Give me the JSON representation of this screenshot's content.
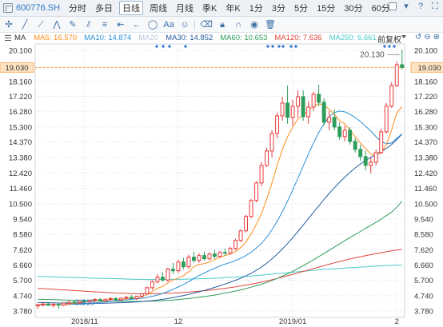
{
  "topbar": {
    "code": "600776.SH",
    "periods": [
      "分时",
      "多日",
      "日线",
      "周线",
      "月线",
      "季K",
      "年K",
      "1分",
      "3分",
      "5分",
      "15分",
      "30分",
      "60分"
    ],
    "active_period": "日线"
  },
  "legend": {
    "ma_title": "MA",
    "items": [
      {
        "label": "MA5: 16.570",
        "color": "#ff8c1a"
      },
      {
        "label": "MA10: 14.874",
        "color": "#2b8fd6"
      },
      {
        "label": "MA20",
        "color": "#b6c6dd"
      },
      {
        "label": "MA30: 14.852",
        "color": "#2a5d9f"
      },
      {
        "label": "MA60: 10.653",
        "color": "#2e9c5a"
      },
      {
        "label": "MA120: 7.636",
        "color": "#e2463b"
      },
      {
        "label": "MA250: 6.661",
        "color": "#49c9c9"
      }
    ],
    "fq": "前复权"
  },
  "chart_data": {
    "type": "candlestick",
    "ylim": [
      3.78,
      20.1
    ],
    "y_ticks": [
      20.1,
      19.03,
      18.16,
      17.22,
      16.28,
      15.3,
      14.37,
      13.38,
      12.42,
      11.46,
      10.5,
      9.54,
      8.58,
      7.62,
      6.66,
      5.7,
      4.74,
      3.78
    ],
    "x_labels": [
      {
        "label": "2018/11",
        "index": 9
      },
      {
        "label": "12",
        "index": 27
      },
      {
        "label": "2019/01",
        "index": 49
      },
      {
        "label": "2",
        "index": 69
      }
    ],
    "current_price": "19.030",
    "high_annotation": {
      "label": "20.130",
      "value": 20.13,
      "index": 70
    },
    "low_annotation": {
      "label": "3.910",
      "value": 3.91,
      "index": 4
    },
    "colors": {
      "up": "#e83a3a",
      "down": "#2e9c5a"
    },
    "candles": [
      {
        "o": 4.1,
        "h": 4.25,
        "l": 3.91,
        "c": 4.18
      },
      {
        "o": 4.18,
        "h": 4.3,
        "l": 4.05,
        "c": 4.22
      },
      {
        "o": 4.22,
        "h": 4.32,
        "l": 4.1,
        "c": 4.14
      },
      {
        "o": 4.14,
        "h": 4.26,
        "l": 4.0,
        "c": 4.2
      },
      {
        "o": 4.2,
        "h": 4.3,
        "l": 3.91,
        "c": 4.15
      },
      {
        "o": 4.15,
        "h": 4.32,
        "l": 4.08,
        "c": 4.28
      },
      {
        "o": 4.28,
        "h": 4.4,
        "l": 4.18,
        "c": 4.34
      },
      {
        "o": 4.34,
        "h": 4.45,
        "l": 4.22,
        "c": 4.3
      },
      {
        "o": 4.3,
        "h": 4.46,
        "l": 4.22,
        "c": 4.4
      },
      {
        "o": 4.4,
        "h": 4.52,
        "l": 4.3,
        "c": 4.36
      },
      {
        "o": 4.36,
        "h": 4.5,
        "l": 4.26,
        "c": 4.45
      },
      {
        "o": 4.45,
        "h": 4.58,
        "l": 4.35,
        "c": 4.5
      },
      {
        "o": 4.5,
        "h": 4.6,
        "l": 4.38,
        "c": 4.42
      },
      {
        "o": 4.42,
        "h": 4.56,
        "l": 4.32,
        "c": 4.52
      },
      {
        "o": 4.52,
        "h": 4.64,
        "l": 4.42,
        "c": 4.56
      },
      {
        "o": 4.56,
        "h": 4.66,
        "l": 4.44,
        "c": 4.48
      },
      {
        "o": 4.48,
        "h": 4.62,
        "l": 4.4,
        "c": 4.58
      },
      {
        "o": 4.58,
        "h": 4.72,
        "l": 4.48,
        "c": 4.64
      },
      {
        "o": 4.64,
        "h": 4.78,
        "l": 4.5,
        "c": 4.56
      },
      {
        "o": 4.56,
        "h": 4.74,
        "l": 4.46,
        "c": 4.7
      },
      {
        "o": 4.7,
        "h": 4.9,
        "l": 4.6,
        "c": 4.86
      },
      {
        "o": 4.86,
        "h": 5.3,
        "l": 4.78,
        "c": 5.24
      },
      {
        "o": 5.24,
        "h": 5.7,
        "l": 5.1,
        "c": 5.62
      },
      {
        "o": 5.62,
        "h": 6.1,
        "l": 5.5,
        "c": 5.9
      },
      {
        "o": 5.9,
        "h": 6.2,
        "l": 5.6,
        "c": 5.72
      },
      {
        "o": 5.72,
        "h": 6.5,
        "l": 5.6,
        "c": 6.4
      },
      {
        "o": 6.4,
        "h": 6.8,
        "l": 6.1,
        "c": 6.3
      },
      {
        "o": 6.3,
        "h": 7.0,
        "l": 6.15,
        "c": 6.85
      },
      {
        "o": 6.85,
        "h": 7.1,
        "l": 6.4,
        "c": 6.55
      },
      {
        "o": 6.55,
        "h": 7.3,
        "l": 6.45,
        "c": 7.15
      },
      {
        "o": 7.15,
        "h": 7.5,
        "l": 6.8,
        "c": 6.95
      },
      {
        "o": 6.95,
        "h": 7.4,
        "l": 6.8,
        "c": 7.25
      },
      {
        "o": 7.25,
        "h": 7.5,
        "l": 6.95,
        "c": 7.05
      },
      {
        "o": 7.05,
        "h": 7.45,
        "l": 6.95,
        "c": 7.35
      },
      {
        "o": 7.35,
        "h": 7.6,
        "l": 7.05,
        "c": 7.2
      },
      {
        "o": 7.2,
        "h": 7.55,
        "l": 7.1,
        "c": 7.45
      },
      {
        "o": 7.45,
        "h": 7.7,
        "l": 7.25,
        "c": 7.4
      },
      {
        "o": 7.4,
        "h": 7.8,
        "l": 7.3,
        "c": 7.7
      },
      {
        "o": 7.7,
        "h": 8.3,
        "l": 7.6,
        "c": 8.2
      },
      {
        "o": 8.2,
        "h": 8.9,
        "l": 8.1,
        "c": 8.8
      },
      {
        "o": 8.8,
        "h": 9.8,
        "l": 8.7,
        "c": 9.7
      },
      {
        "o": 9.7,
        "h": 10.8,
        "l": 9.6,
        "c": 10.7
      },
      {
        "o": 10.7,
        "h": 11.9,
        "l": 10.6,
        "c": 11.8
      },
      {
        "o": 11.8,
        "h": 13.1,
        "l": 11.6,
        "c": 12.9
      },
      {
        "o": 12.9,
        "h": 14.0,
        "l": 12.8,
        "c": 13.8
      },
      {
        "o": 13.8,
        "h": 15.1,
        "l": 13.4,
        "c": 14.9
      },
      {
        "o": 14.9,
        "h": 16.2,
        "l": 14.6,
        "c": 16.0
      },
      {
        "o": 16.0,
        "h": 17.2,
        "l": 15.7,
        "c": 16.8
      },
      {
        "o": 16.8,
        "h": 17.9,
        "l": 15.5,
        "c": 15.9
      },
      {
        "o": 15.9,
        "h": 17.0,
        "l": 15.4,
        "c": 16.6
      },
      {
        "o": 16.6,
        "h": 17.6,
        "l": 15.9,
        "c": 17.2
      },
      {
        "o": 17.2,
        "h": 17.6,
        "l": 15.7,
        "c": 15.95
      },
      {
        "o": 15.95,
        "h": 16.9,
        "l": 15.5,
        "c": 16.55
      },
      {
        "o": 16.55,
        "h": 17.5,
        "l": 16.3,
        "c": 17.35
      },
      {
        "o": 17.35,
        "h": 17.95,
        "l": 16.6,
        "c": 16.85
      },
      {
        "o": 16.85,
        "h": 17.1,
        "l": 15.4,
        "c": 15.6
      },
      {
        "o": 15.6,
        "h": 16.3,
        "l": 15.1,
        "c": 15.9
      },
      {
        "o": 15.9,
        "h": 16.4,
        "l": 15.1,
        "c": 15.3
      },
      {
        "o": 15.3,
        "h": 15.6,
        "l": 14.5,
        "c": 14.7
      },
      {
        "o": 14.7,
        "h": 15.4,
        "l": 14.4,
        "c": 15.1
      },
      {
        "o": 15.1,
        "h": 15.3,
        "l": 14.2,
        "c": 14.4
      },
      {
        "o": 14.4,
        "h": 14.6,
        "l": 13.7,
        "c": 13.9
      },
      {
        "o": 13.9,
        "h": 14.2,
        "l": 13.2,
        "c": 13.45
      },
      {
        "o": 13.45,
        "h": 13.8,
        "l": 12.6,
        "c": 12.9
      },
      {
        "o": 12.9,
        "h": 13.4,
        "l": 12.4,
        "c": 13.1
      },
      {
        "o": 13.1,
        "h": 13.9,
        "l": 12.9,
        "c": 13.7
      },
      {
        "o": 13.7,
        "h": 15.2,
        "l": 13.6,
        "c": 15.0
      },
      {
        "o": 15.0,
        "h": 16.8,
        "l": 14.9,
        "c": 16.6
      },
      {
        "o": 16.6,
        "h": 18.1,
        "l": 16.5,
        "c": 17.9
      },
      {
        "o": 17.9,
        "h": 19.4,
        "l": 17.8,
        "c": 19.2
      },
      {
        "o": 19.2,
        "h": 20.13,
        "l": 18.9,
        "c": 19.03
      }
    ],
    "ma": {
      "MA5": {
        "color": "#ff8c1a",
        "values": [
          4.18,
          4.2,
          4.18,
          4.18,
          4.18,
          4.2,
          4.22,
          4.25,
          4.29,
          4.33,
          4.37,
          4.41,
          4.43,
          4.45,
          4.49,
          4.51,
          4.52,
          4.56,
          4.57,
          4.59,
          4.67,
          4.81,
          5.0,
          5.2,
          5.32,
          5.53,
          5.72,
          5.85,
          6.0,
          6.25,
          6.56,
          6.7,
          6.75,
          6.85,
          7.0,
          7.15,
          7.25,
          7.35,
          7.5,
          7.75,
          8.1,
          8.6,
          9.2,
          9.9,
          10.8,
          11.8,
          12.9,
          13.9,
          14.7,
          15.3,
          15.8,
          16.05,
          16.35,
          16.6,
          16.75,
          16.7,
          16.4,
          16.1,
          15.7,
          15.5,
          15.1,
          14.7,
          14.3,
          13.95,
          13.6,
          13.5,
          13.7,
          14.2,
          15.1,
          16.2,
          16.57
        ]
      },
      "MA10": {
        "color": "#2b8fd6",
        "values": [
          4.15,
          4.16,
          4.17,
          4.17,
          4.17,
          4.18,
          4.19,
          4.2,
          4.21,
          4.23,
          4.26,
          4.29,
          4.32,
          4.35,
          4.38,
          4.42,
          4.45,
          4.48,
          4.51,
          4.54,
          4.58,
          4.63,
          4.7,
          4.78,
          4.88,
          5.0,
          5.14,
          5.28,
          5.44,
          5.62,
          5.82,
          6.0,
          6.16,
          6.32,
          6.46,
          6.6,
          6.72,
          6.82,
          6.94,
          7.08,
          7.25,
          7.46,
          7.72,
          8.02,
          8.4,
          8.86,
          9.4,
          10.0,
          10.66,
          11.36,
          12.1,
          12.85,
          13.6,
          14.3,
          14.95,
          15.5,
          15.95,
          16.2,
          16.3,
          16.25,
          16.1,
          15.9,
          15.65,
          15.35,
          15.05,
          14.7,
          14.4,
          14.25,
          14.3,
          14.6,
          14.87
        ]
      },
      "MA30": {
        "color": "#2a5d9f",
        "values": [
          4.32,
          4.31,
          4.3,
          4.29,
          4.28,
          4.27,
          4.26,
          4.26,
          4.25,
          4.25,
          4.25,
          4.26,
          4.26,
          4.27,
          4.28,
          4.29,
          4.3,
          4.31,
          4.33,
          4.35,
          4.37,
          4.4,
          4.43,
          4.47,
          4.51,
          4.56,
          4.62,
          4.68,
          4.75,
          4.82,
          4.9,
          4.98,
          5.07,
          5.16,
          5.26,
          5.36,
          5.47,
          5.58,
          5.7,
          5.83,
          5.98,
          6.14,
          6.33,
          6.54,
          6.78,
          7.04,
          7.34,
          7.66,
          8.0,
          8.37,
          8.76,
          9.16,
          9.56,
          9.96,
          10.36,
          10.76,
          11.14,
          11.5,
          11.84,
          12.16,
          12.46,
          12.74,
          12.98,
          13.2,
          13.4,
          13.58,
          13.76,
          13.96,
          14.2,
          14.52,
          14.85
        ]
      },
      "MA60": {
        "color": "#2e9c5a",
        "values": [
          4.52,
          4.51,
          4.5,
          4.49,
          4.48,
          4.47,
          4.46,
          4.45,
          4.44,
          4.43,
          4.42,
          4.41,
          4.4,
          4.4,
          4.39,
          4.39,
          4.38,
          4.38,
          4.38,
          4.38,
          4.38,
          4.39,
          4.4,
          4.41,
          4.43,
          4.45,
          4.47,
          4.5,
          4.53,
          4.56,
          4.6,
          4.64,
          4.68,
          4.73,
          4.78,
          4.84,
          4.9,
          4.96,
          5.03,
          5.1,
          5.18,
          5.27,
          5.36,
          5.46,
          5.57,
          5.69,
          5.82,
          5.96,
          6.11,
          6.27,
          6.44,
          6.62,
          6.8,
          6.99,
          7.18,
          7.38,
          7.58,
          7.78,
          7.98,
          8.18,
          8.38,
          8.57,
          8.76,
          8.95,
          9.14,
          9.33,
          9.53,
          9.75,
          9.98,
          10.28,
          10.65
        ]
      },
      "MA120": {
        "color": "#e2463b",
        "values": [
          5.2,
          5.18,
          5.16,
          5.14,
          5.12,
          5.1,
          5.08,
          5.06,
          5.04,
          5.02,
          5.0,
          4.98,
          4.96,
          4.94,
          4.92,
          4.9,
          4.89,
          4.88,
          4.87,
          4.86,
          4.86,
          4.86,
          4.86,
          4.87,
          4.88,
          4.89,
          4.9,
          4.92,
          4.94,
          4.96,
          4.99,
          5.02,
          5.05,
          5.08,
          5.12,
          5.16,
          5.2,
          5.24,
          5.29,
          5.34,
          5.4,
          5.46,
          5.52,
          5.59,
          5.66,
          5.74,
          5.82,
          5.9,
          5.99,
          6.08,
          6.17,
          6.26,
          6.35,
          6.44,
          6.53,
          6.62,
          6.71,
          6.8,
          6.88,
          6.96,
          7.04,
          7.11,
          7.18,
          7.25,
          7.31,
          7.37,
          7.43,
          7.49,
          7.55,
          7.6,
          7.64
        ]
      },
      "MA250": {
        "color": "#49c9c9",
        "values": [
          5.95,
          5.94,
          5.93,
          5.92,
          5.91,
          5.9,
          5.89,
          5.88,
          5.87,
          5.86,
          5.85,
          5.84,
          5.83,
          5.82,
          5.81,
          5.8,
          5.79,
          5.78,
          5.77,
          5.76,
          5.76,
          5.75,
          5.75,
          5.75,
          5.75,
          5.75,
          5.76,
          5.76,
          5.77,
          5.78,
          5.79,
          5.8,
          5.81,
          5.82,
          5.84,
          5.85,
          5.87,
          5.89,
          5.91,
          5.93,
          5.95,
          5.97,
          6.0,
          6.03,
          6.06,
          6.09,
          6.12,
          6.15,
          6.18,
          6.21,
          6.24,
          6.27,
          6.3,
          6.33,
          6.36,
          6.39,
          6.41,
          6.43,
          6.45,
          6.47,
          6.49,
          6.51,
          6.53,
          6.55,
          6.57,
          6.59,
          6.61,
          6.63,
          6.64,
          6.65,
          6.66
        ]
      }
    },
    "marker_dots": [
      [
        29,
        31,
        33,
        36,
        38
      ],
      [
        51,
        53,
        56,
        58,
        60,
        62,
        64,
        66,
        69,
        71,
        73,
        75,
        77,
        79,
        81,
        83,
        85,
        87,
        89,
        91,
        93,
        95
      ]
    ]
  }
}
